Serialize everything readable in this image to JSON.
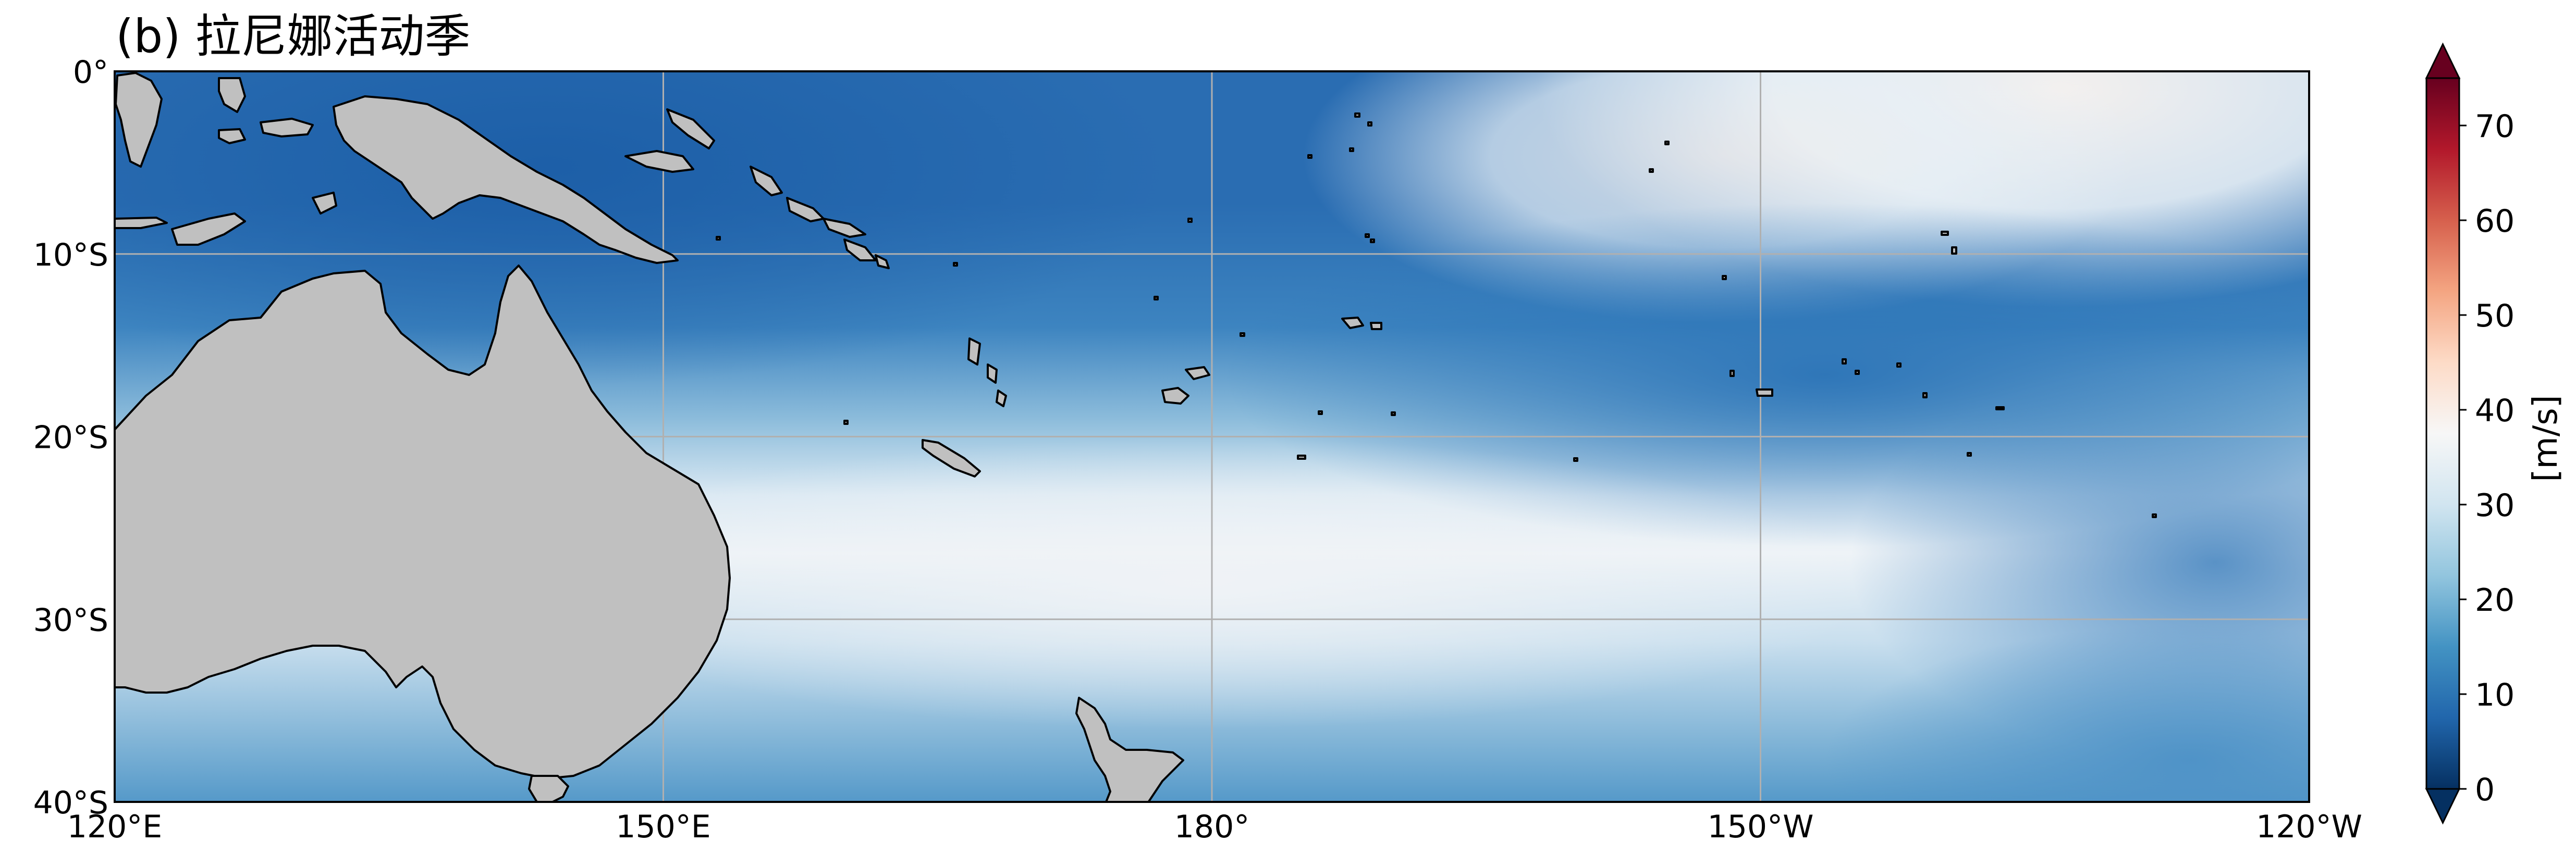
{
  "title": "(b) 拉尼娜活动季",
  "map": {
    "lon_range": [
      120,
      240
    ],
    "lat_range": [
      -40,
      0
    ],
    "x_ticks": [
      {
        "lon": 120,
        "label": "120°E"
      },
      {
        "lon": 150,
        "label": "150°E"
      },
      {
        "lon": 180,
        "label": "180°"
      },
      {
        "lon": 210,
        "label": "150°W"
      },
      {
        "lon": 240,
        "label": "120°W"
      }
    ],
    "y_ticks": [
      {
        "lat": 0,
        "label": "0°"
      },
      {
        "lat": -10,
        "label": "10°S"
      },
      {
        "lat": -20,
        "label": "20°S"
      },
      {
        "lat": -30,
        "label": "30°S"
      },
      {
        "lat": -40,
        "label": "40°S"
      }
    ],
    "gridlines": true,
    "land_color": "#c0c0c0",
    "coastline_color": "#000000",
    "grid_color": "#b0b0b0"
  },
  "colorbar": {
    "label": "[m/s]",
    "min": 0,
    "max": 75,
    "extend": "both",
    "ticks": [
      0,
      10,
      20,
      30,
      40,
      50,
      60,
      70
    ],
    "tick_labels": [
      "0",
      "10",
      "20",
      "30",
      "40",
      "50",
      "60",
      "70"
    ],
    "colors": [
      "#053061",
      "#2166ac",
      "#4393c3",
      "#92c5de",
      "#d1e5f0",
      "#f7f7f7",
      "#fddbc7",
      "#f4a582",
      "#d6604d",
      "#b2182b",
      "#67001f"
    ]
  }
}
